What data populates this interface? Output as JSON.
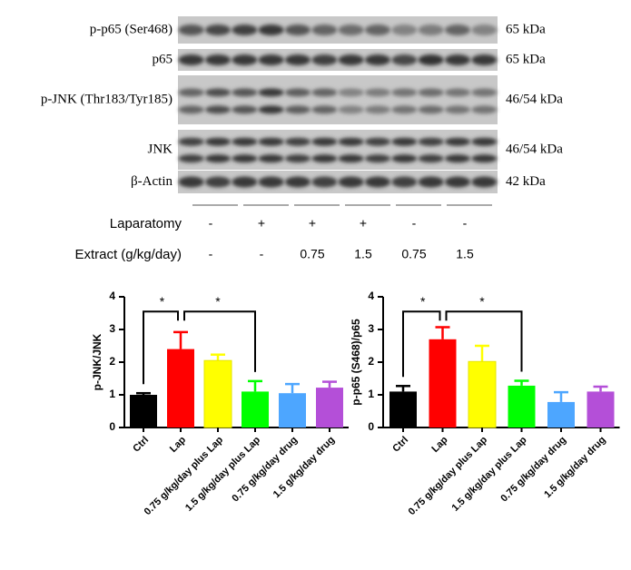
{
  "blot": {
    "rows": [
      {
        "label": "p-p65 (Ser468)",
        "size": "65 kDa"
      },
      {
        "label": "p65",
        "size": "65 kDa"
      },
      {
        "label": "p-JNK (Thr183/Tyr185)",
        "size": "46/54 kDa"
      },
      {
        "label": "JNK",
        "size": "46/54 kDa"
      },
      {
        "label": "β-Actin",
        "size": "42 kDa"
      }
    ],
    "conditions": [
      {
        "label": "Laparatomy",
        "values": [
          "-",
          "+",
          "+",
          "+",
          "-",
          "-"
        ]
      },
      {
        "label": "Extract (g/kg/day)",
        "values": [
          "-",
          "-",
          "0.75",
          "1.5",
          "0.75",
          "1.5"
        ]
      }
    ]
  },
  "chart_data": [
    {
      "type": "bar",
      "y_label": "p-JNK/JNK",
      "categories": [
        "Ctrl",
        "Lap",
        "0.75 g/kg/day plus Lap",
        "1.5 g/kg/day plus Lap",
        "0.75 g/kg/day drug",
        "1.5 g/kg/day drug"
      ],
      "values": [
        1.0,
        2.4,
        2.05,
        1.1,
        1.05,
        1.22
      ],
      "errors": [
        0.05,
        0.52,
        0.18,
        0.32,
        0.28,
        0.18
      ],
      "colors": [
        "#000000",
        "#ff0000",
        "#ffff00",
        "#00ff00",
        "#4da6ff",
        "#b44fd8"
      ],
      "ylim": [
        0,
        4
      ],
      "yticks": [
        0,
        1,
        2,
        3,
        4
      ],
      "annotations": [
        "*",
        "*"
      ]
    },
    {
      "type": "bar",
      "y_label": "p-p65 (S468)/p65",
      "categories": [
        "Ctrl",
        "Lap",
        "0.75 g/kg/day plus Lap",
        "1.5 g/kg/day plus Lap",
        "0.75 g/kg/day drug",
        "1.5 g/kg/day drug"
      ],
      "values": [
        1.1,
        2.7,
        2.02,
        1.28,
        0.78,
        1.1
      ],
      "errors": [
        0.17,
        0.37,
        0.48,
        0.15,
        0.3,
        0.15
      ],
      "colors": [
        "#000000",
        "#ff0000",
        "#ffff00",
        "#00ff00",
        "#4da6ff",
        "#b44fd8"
      ],
      "ylim": [
        0,
        4
      ],
      "yticks": [
        0,
        1,
        2,
        3,
        4
      ],
      "annotations": [
        "*",
        "*"
      ]
    }
  ]
}
